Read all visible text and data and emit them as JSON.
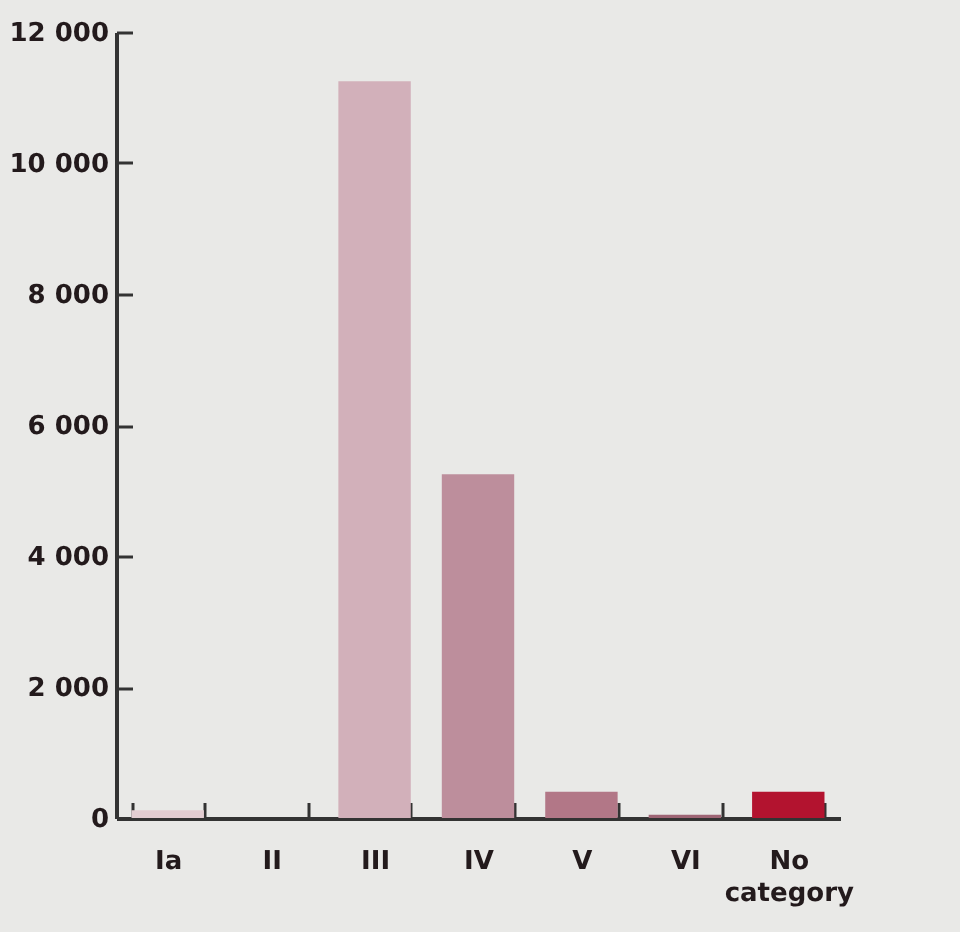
{
  "chart_data": {
    "type": "bar",
    "categories": [
      "Ia",
      "II",
      "III",
      "IV",
      "V",
      "VI",
      "No category"
    ],
    "values": [
      120,
      null,
      11250,
      5250,
      400,
      50,
      400
    ],
    "colors": [
      "#e3cdd2",
      "#d9c0c6",
      "#d2b0ba",
      "#bd8e9c",
      "#b27787",
      "#9e6575",
      "#b3132f"
    ],
    "ylim": [
      0,
      12000
    ],
    "yticks": [
      {
        "value": 0,
        "label": "0"
      },
      {
        "value": 2000,
        "label": "2 000"
      },
      {
        "value": 4000,
        "label": "4 000"
      },
      {
        "value": 6000,
        "label": "6 000"
      },
      {
        "value": 8000,
        "label": "8 000"
      },
      {
        "value": 10000,
        "label": "10 000"
      },
      {
        "value": 12000,
        "label": "12 000"
      }
    ],
    "grid": false
  }
}
